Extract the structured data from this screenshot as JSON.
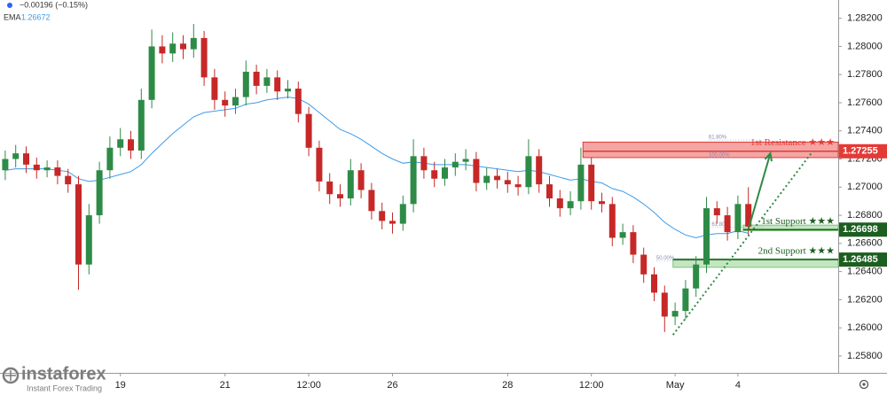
{
  "header": {
    "change": "−0.00196 (−0.15%)",
    "ema_label": "EMA",
    "ema_value": "1.26672"
  },
  "watermark": {
    "brand": "instaforex",
    "tagline": "Instant Forex Trading"
  },
  "chart_data": {
    "type": "candlestick",
    "up_color": "#2e8b47",
    "down_color": "#c62828",
    "ylim": [
      1.2568,
      1.2833
    ],
    "yticks": [
      {
        "value": 1.282,
        "label": "1.28200"
      },
      {
        "value": 1.28,
        "label": "1.28000"
      },
      {
        "value": 1.278,
        "label": "1.27800"
      },
      {
        "value": 1.276,
        "label": "1.27600"
      },
      {
        "value": 1.274,
        "label": "1.27400"
      },
      {
        "value": 1.272,
        "label": "1.27200"
      },
      {
        "value": 1.27,
        "label": "1.27000"
      },
      {
        "value": 1.268,
        "label": "1.26800"
      },
      {
        "value": 1.266,
        "label": "1.26600"
      },
      {
        "value": 1.264,
        "label": "1.26400"
      },
      {
        "value": 1.262,
        "label": "1.26200"
      },
      {
        "value": 1.26,
        "label": "1.26000"
      },
      {
        "value": 1.258,
        "label": "1.25800"
      }
    ],
    "xticks": [
      {
        "value": 11,
        "label": "19"
      },
      {
        "value": 21,
        "label": "21"
      },
      {
        "value": 29,
        "label": "12:00"
      },
      {
        "value": 37,
        "label": "26"
      },
      {
        "value": 48,
        "label": "28"
      },
      {
        "value": 56,
        "label": "12:00"
      },
      {
        "value": 64,
        "label": "May"
      },
      {
        "value": 70,
        "label": "4"
      }
    ],
    "open": [
      1.2712,
      1.272,
      1.2724,
      1.2716,
      1.2712,
      1.2714,
      1.2708,
      1.2702,
      1.2645,
      1.268,
      1.2712,
      1.2728,
      1.2734,
      1.2726,
      1.2762,
      1.28,
      1.2795,
      1.2802,
      1.2798,
      1.2806,
      1.2778,
      1.2762,
      1.2758,
      1.2764,
      1.2782,
      1.2772,
      1.2778,
      1.2768,
      1.277,
      1.2752,
      1.2728,
      1.2704,
      1.2695,
      1.2692,
      1.2712,
      1.2698,
      1.2683,
      1.2676,
      1.2674,
      1.2688,
      1.2722,
      1.2712,
      1.2706,
      1.2714,
      1.2718,
      1.272,
      1.2703,
      1.2708,
      1.2705,
      1.2702,
      1.27,
      1.2722,
      1.2702,
      1.2692,
      1.2685,
      1.269,
      1.2716,
      1.269,
      1.2688,
      1.2664,
      1.2668,
      1.2652,
      1.2638,
      1.2625,
      1.2608,
      1.2612,
      1.2628,
      1.2645,
      1.2685,
      1.268,
      1.2668,
      1.2688
    ],
    "high": [
      1.2726,
      1.273,
      1.2729,
      1.2721,
      1.2719,
      1.2719,
      1.2713,
      1.2708,
      1.2688,
      1.2718,
      1.2736,
      1.2742,
      1.274,
      1.277,
      1.2812,
      1.2808,
      1.281,
      1.2808,
      1.2816,
      1.2811,
      1.2784,
      1.2768,
      1.277,
      1.279,
      1.2787,
      1.2784,
      1.2783,
      1.2776,
      1.2775,
      1.2757,
      1.2733,
      1.271,
      1.2702,
      1.272,
      1.2717,
      1.2703,
      1.2689,
      1.2682,
      1.2694,
      1.2734,
      1.2728,
      1.2718,
      1.272,
      1.2724,
      1.2727,
      1.2725,
      1.2714,
      1.2713,
      1.2711,
      1.2708,
      1.2734,
      1.2727,
      1.2708,
      1.2698,
      1.2697,
      1.2728,
      1.2721,
      1.2696,
      1.2693,
      1.2674,
      1.2673,
      1.2657,
      1.2643,
      1.263,
      1.2618,
      1.2634,
      1.2651,
      1.2693,
      1.269,
      1.2686,
      1.2694,
      1.27
    ],
    "low": [
      1.2705,
      1.2714,
      1.271,
      1.2706,
      1.2707,
      1.2702,
      1.2696,
      1.2627,
      1.2638,
      1.2674,
      1.2706,
      1.2722,
      1.272,
      1.272,
      1.2756,
      1.2788,
      1.2789,
      1.2791,
      1.2792,
      1.2772,
      1.2755,
      1.275,
      1.2752,
      1.2758,
      1.2766,
      1.2767,
      1.2762,
      1.2763,
      1.2746,
      1.2722,
      1.2697,
      1.2688,
      1.2686,
      1.2687,
      1.2692,
      1.2677,
      1.267,
      1.2667,
      1.2669,
      1.2682,
      1.2706,
      1.27,
      1.2701,
      1.2708,
      1.2712,
      1.2697,
      1.2698,
      1.2699,
      1.2696,
      1.2694,
      1.2695,
      1.2696,
      1.2686,
      1.2679,
      1.268,
      1.2684,
      1.2684,
      1.2682,
      1.2658,
      1.2659,
      1.2646,
      1.2632,
      1.2619,
      1.2597,
      1.2602,
      1.2606,
      1.2622,
      1.2639,
      1.2674,
      1.2662,
      1.2663,
      1.2666
    ],
    "close": [
      1.272,
      1.2724,
      1.2716,
      1.2712,
      1.2714,
      1.2708,
      1.2702,
      1.2645,
      1.268,
      1.2712,
      1.2728,
      1.2734,
      1.2726,
      1.2762,
      1.28,
      1.2795,
      1.2802,
      1.2798,
      1.2806,
      1.2778,
      1.2762,
      1.2758,
      1.2764,
      1.2782,
      1.2772,
      1.2778,
      1.2768,
      1.277,
      1.2752,
      1.2728,
      1.2704,
      1.2695,
      1.2692,
      1.2712,
      1.2698,
      1.2683,
      1.2676,
      1.2674,
      1.2688,
      1.2722,
      1.2712,
      1.2706,
      1.2714,
      1.2718,
      1.272,
      1.2703,
      1.2708,
      1.2705,
      1.2702,
      1.27,
      1.2722,
      1.2702,
      1.2692,
      1.2685,
      1.269,
      1.2716,
      1.269,
      1.2688,
      1.2664,
      1.2668,
      1.2652,
      1.2638,
      1.2625,
      1.2608,
      1.2612,
      1.2628,
      1.2645,
      1.2685,
      1.268,
      1.2668,
      1.2688,
      1.2672
    ],
    "ema": {
      "name": "EMA",
      "color": "#3d9be9",
      "values": [
        1.2712,
        1.2713,
        1.2713,
        1.2713,
        1.2713,
        1.2712,
        1.2711,
        1.2706,
        1.2704,
        1.2705,
        1.2707,
        1.2709,
        1.2711,
        1.2716,
        1.2724,
        1.2731,
        1.2738,
        1.2744,
        1.275,
        1.2753,
        1.2754,
        1.2755,
        1.2756,
        1.2759,
        1.276,
        1.2762,
        1.2763,
        1.2764,
        1.2763,
        1.2759,
        1.2753,
        1.2747,
        1.2741,
        1.2738,
        1.2734,
        1.2729,
        1.2724,
        1.272,
        1.2717,
        1.2718,
        1.2717,
        1.2716,
        1.2716,
        1.2716,
        1.2716,
        1.2715,
        1.2714,
        1.2713,
        1.2712,
        1.2711,
        1.2712,
        1.2711,
        1.2709,
        1.2707,
        1.2705,
        1.2706,
        1.2704,
        1.2703,
        1.2699,
        1.2697,
        1.2693,
        1.2688,
        1.2682,
        1.2675,
        1.267,
        1.2666,
        1.2664,
        1.2666,
        1.2667,
        1.2667,
        1.2669,
        1.26672
      ]
    },
    "zones": [
      {
        "name": "1st Resistance ★★★",
        "level": {
          "value": 1.27255,
          "label": "1.27255"
        },
        "low": 1.2721,
        "high": 1.2732,
        "x_start": 55.2,
        "color": "#e53935",
        "label_color": "#e53935"
      },
      {
        "name": "1st Support ★★★",
        "level": {
          "value": 1.26698,
          "label": "1.26698"
        },
        "low": 1.2669,
        "high": 1.2673,
        "x_start": 70.5,
        "color": "#7cc576",
        "label_color": "#1b5e20"
      },
      {
        "name": "2nd Support ★★★",
        "level": {
          "value": 1.26485,
          "label": "1.26485"
        },
        "low": 1.2643,
        "high": 1.2649,
        "x_start": 63.8,
        "color": "#7cc576",
        "label_color": "#1b5e20"
      }
    ],
    "trendline": {
      "x": [
        63.8,
        77.0
      ],
      "y": [
        1.2595,
        1.2724
      ],
      "color": "#2e8b47"
    },
    "arrow": {
      "x": [
        71.0,
        73.1
      ],
      "y": [
        1.267,
        1.2724
      ],
      "color": "#2e8b47"
    },
    "fib_labels": [
      {
        "text": "61.80%",
        "x": 67.2,
        "y": 1.27335
      },
      {
        "text": "100.00%",
        "x": 67.2,
        "y": 1.2721
      },
      {
        "text": "50.00%",
        "x": 62.2,
        "y": 1.26476
      },
      {
        "text": "61.80%",
        "x": 67.5,
        "y": 1.26716
      }
    ]
  }
}
